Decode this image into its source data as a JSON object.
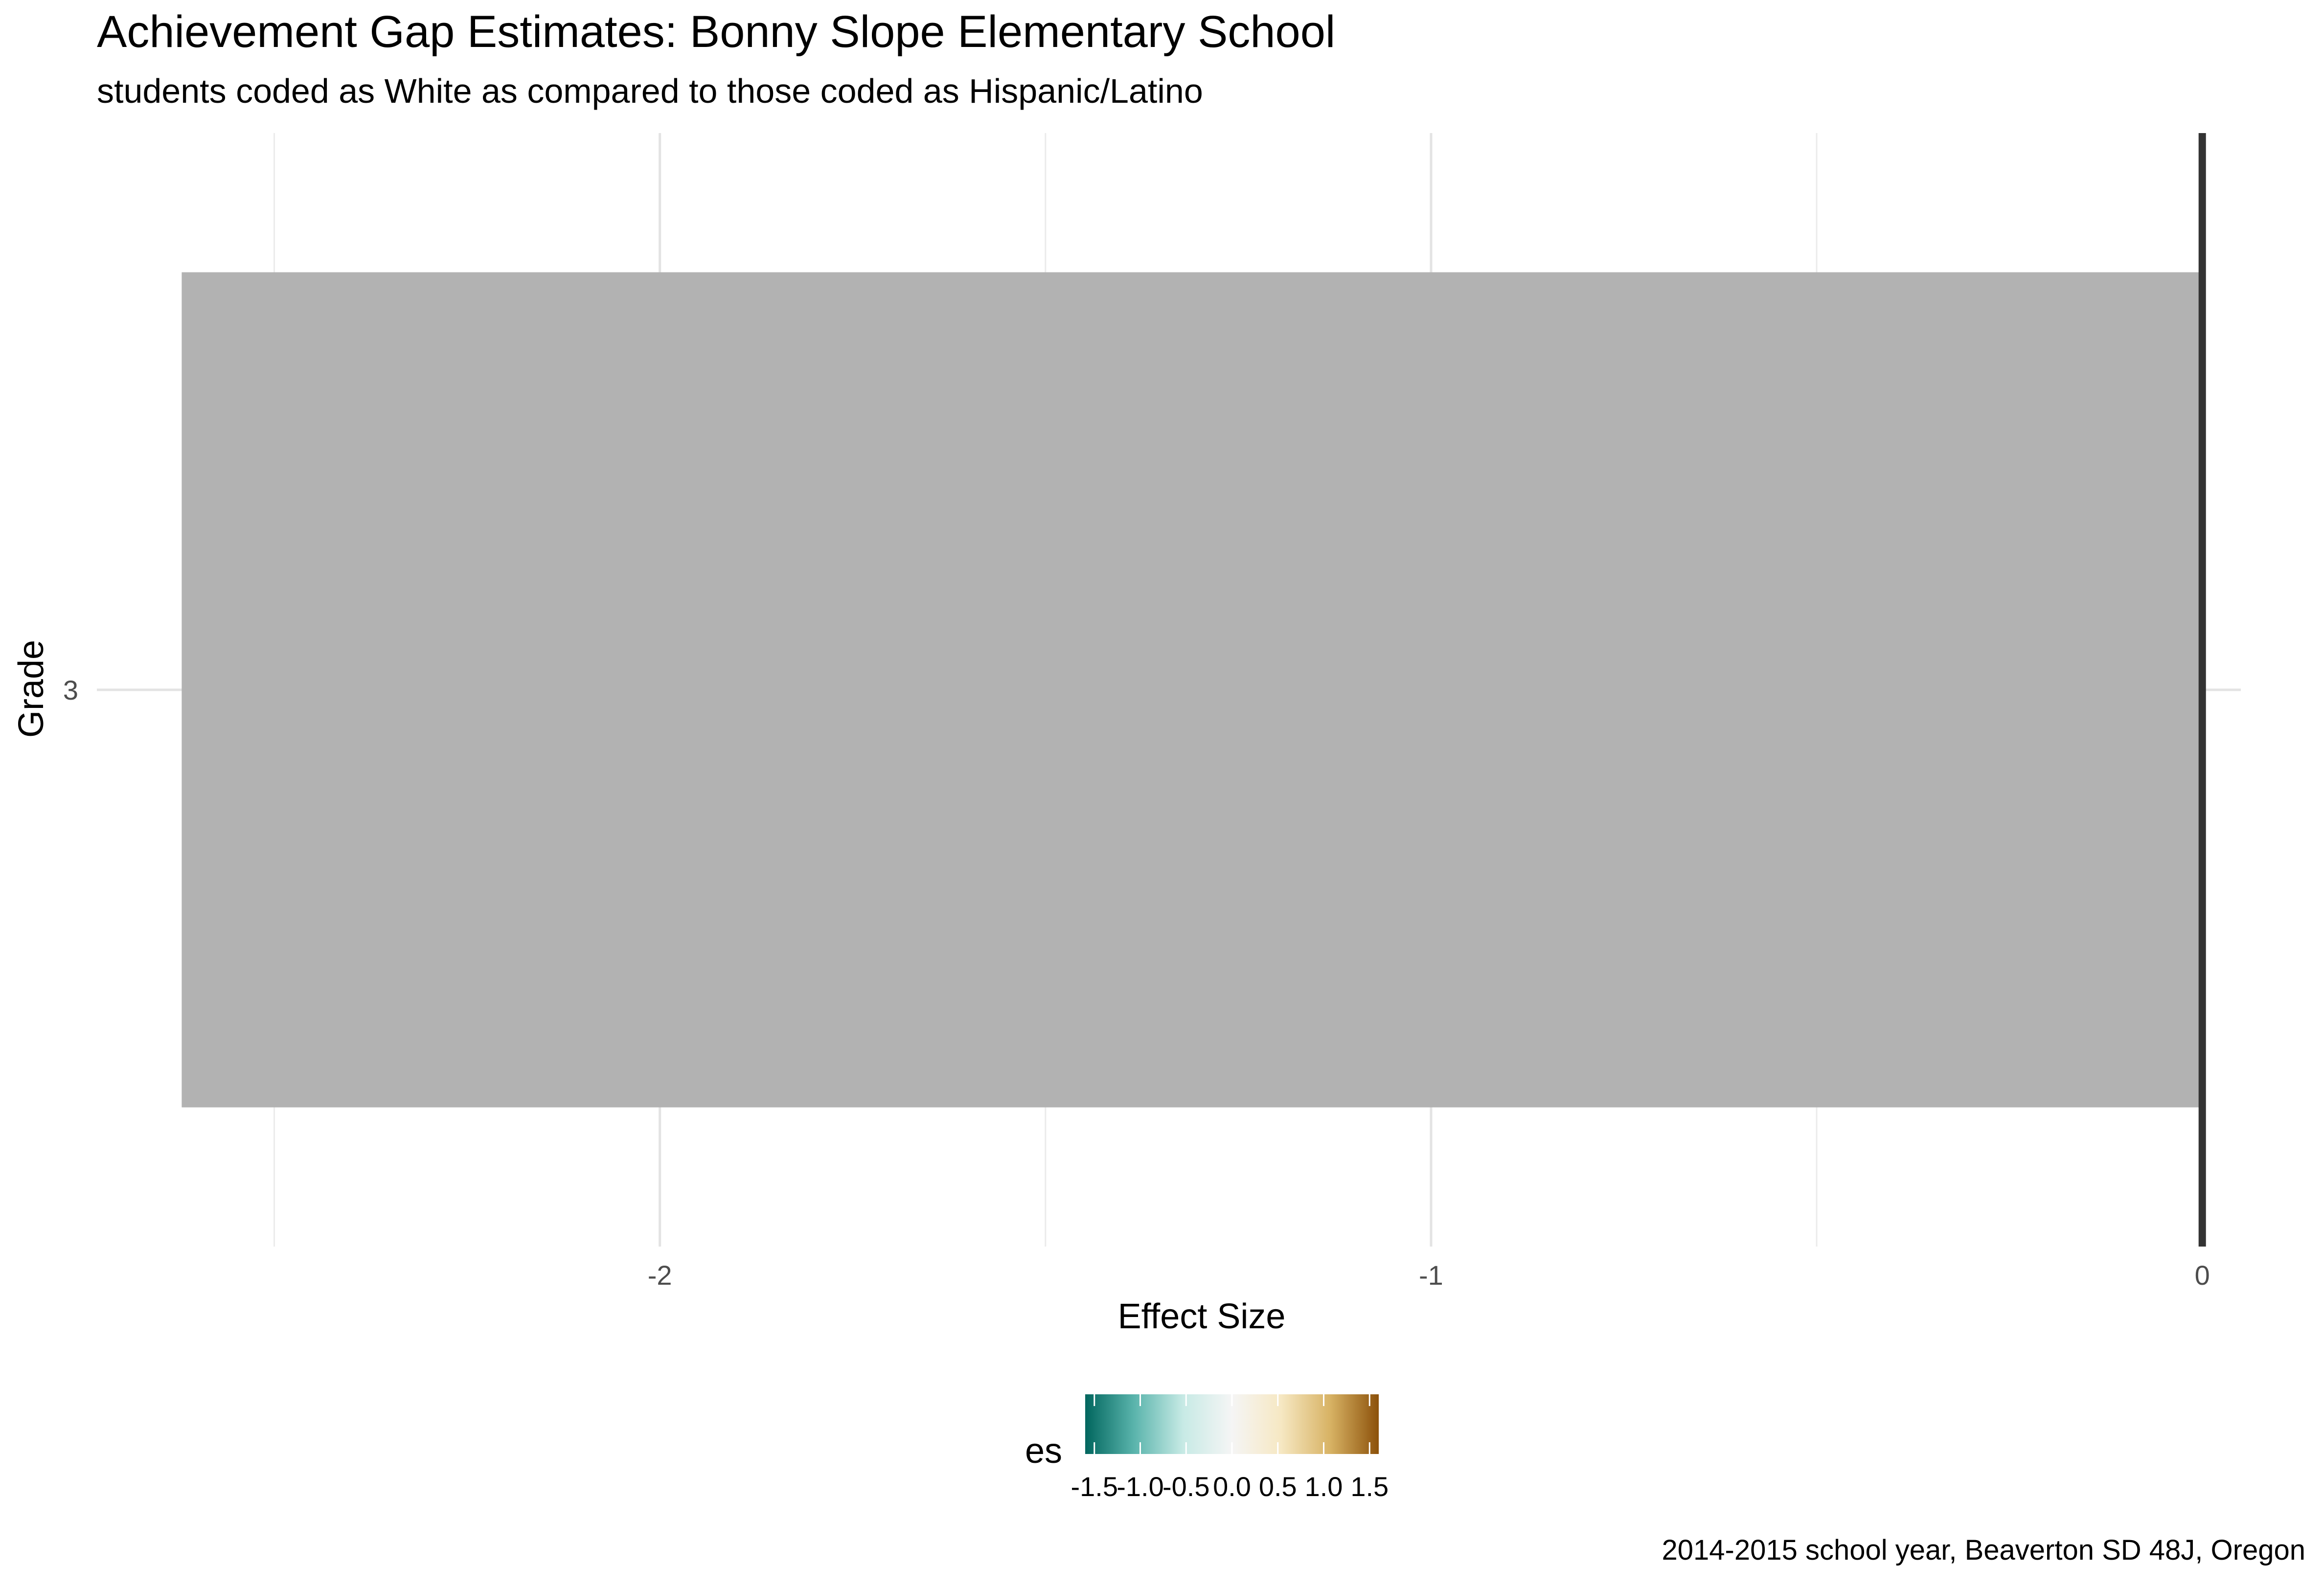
{
  "chart_data": {
    "type": "bar",
    "orientation": "horizontal",
    "title": "Achievement Gap Estimates: Bonny Slope Elementary School",
    "subtitle": "students coded as White as compared to those coded as Hispanic/Latino",
    "xlabel": "Effect Size",
    "ylabel": "Grade",
    "categories": [
      "3"
    ],
    "values": [
      -2.62
    ],
    "xlim": [
      -2.73,
      0.05
    ],
    "x_ticks": [
      -2,
      -1,
      0
    ],
    "x_minor_ticks": [
      -2.5,
      -1.5,
      -0.5
    ],
    "bar_color": "#b2b2b2",
    "reference_line": 0,
    "grid": true,
    "legend": {
      "title": "es",
      "position": "bottom",
      "type": "colorbar",
      "ticks": [
        "-1.5",
        "-1.0",
        "-0.5",
        "0.0",
        "0.5",
        "1.0",
        "1.5"
      ],
      "tick_values": [
        -1.5,
        -1.0,
        -0.5,
        0.0,
        0.5,
        1.0,
        1.5
      ],
      "range": [
        -1.6,
        1.6
      ],
      "colors": [
        "#01665e",
        "#5ab4ac",
        "#c7eae5",
        "#f5f5f5",
        "#f6e8c3",
        "#d8b365",
        "#8c510a"
      ]
    },
    "caption": "2014-2015 school year, Beaverton SD 48J, Oregon"
  }
}
